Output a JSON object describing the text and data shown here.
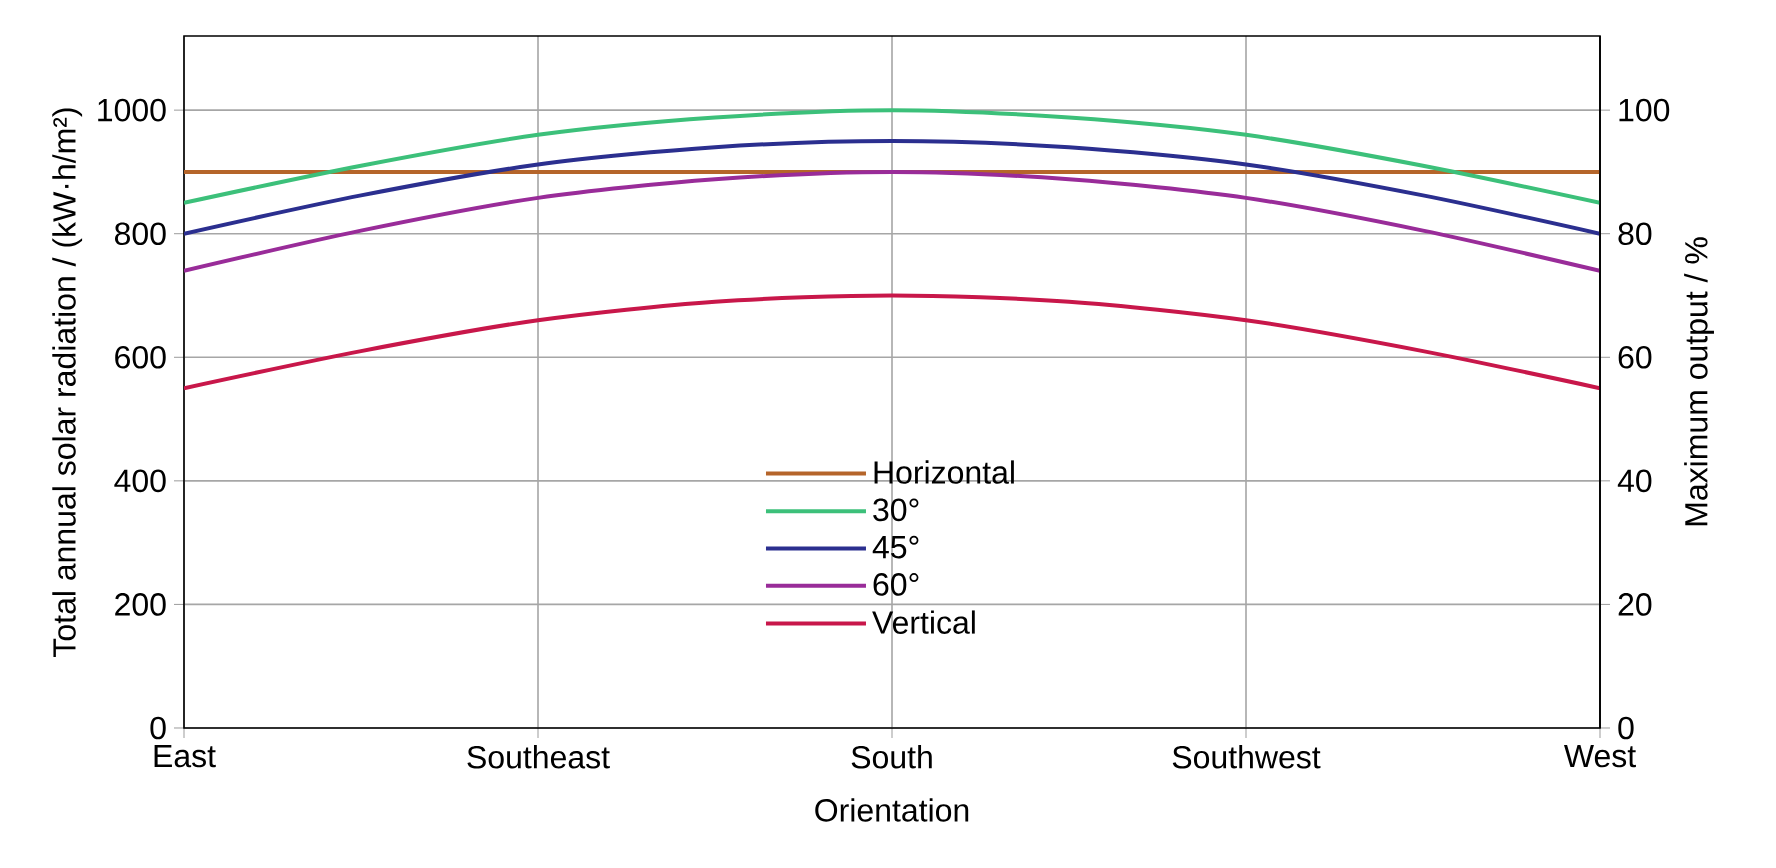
{
  "chart_data": {
    "type": "line",
    "xlabel": "Orientation",
    "ylabel": "Total annual solar radiation / (kW·h/m²)",
    "y2label": "Maximum output / %",
    "categories": [
      "East",
      null,
      "Southeast",
      null,
      "South",
      null,
      "Southwest",
      null,
      "West"
    ],
    "ylim": [
      0,
      1120
    ],
    "yticks": [
      0,
      200,
      400,
      600,
      800,
      1000
    ],
    "y2lim": [
      0,
      112
    ],
    "y2ticks": [
      0,
      20,
      40,
      60,
      80,
      100
    ],
    "grid": true,
    "legend": "bottom",
    "marker": "none",
    "line_style": "solid",
    "series": [
      {
        "name": "Horizontal",
        "color": "#b5652a",
        "values": [
          900,
          900,
          900,
          900,
          900,
          900,
          900,
          900,
          900
        ]
      },
      {
        "name": "30°",
        "color": "#3cc07a",
        "values": [
          850,
          910,
          960,
          988,
          1000,
          988,
          960,
          910,
          850
        ]
      },
      {
        "name": "45°",
        "color": "#2b2f8f",
        "values": [
          800,
          862,
          912,
          940,
          950,
          940,
          912,
          862,
          800
        ]
      },
      {
        "name": "60°",
        "color": "#992c99",
        "values": [
          740,
          805,
          858,
          888,
          900,
          888,
          858,
          805,
          740
        ]
      },
      {
        "name": "Vertical",
        "color": "#c8174a",
        "values": [
          550,
          610,
          660,
          690,
          700,
          690,
          660,
          610,
          550
        ]
      }
    ]
  }
}
